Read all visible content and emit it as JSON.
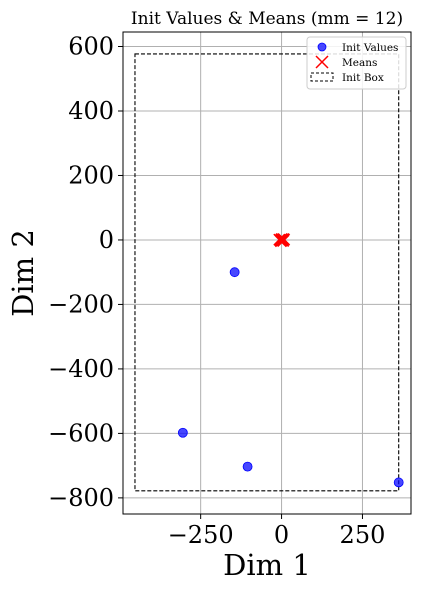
{
  "chart_data": {
    "type": "scatter",
    "title": "Init Values & Means (mm = 12)",
    "xlabel": "Dim 1",
    "ylabel": "Dim 2",
    "xlim": [
      -490,
      400
    ],
    "ylim": [
      -850,
      645
    ],
    "xticks": [
      -250,
      0,
      250
    ],
    "xtick_labels": [
      "−250",
      "0",
      "250"
    ],
    "yticks": [
      -800,
      -600,
      -400,
      -200,
      0,
      200,
      400,
      600
    ],
    "ytick_labels": [
      "−800",
      "−600",
      "−400",
      "−200",
      "0",
      "200",
      "400",
      "600"
    ],
    "grid": true,
    "legend_placement": "top-right",
    "colors": {
      "init_values": "#0000ff",
      "means": "#ff0000",
      "init_box": "#000000",
      "grid": "#b0b0b0"
    },
    "series": [
      {
        "name": "Init Values",
        "marker": "circle",
        "points": [
          {
            "x": -145,
            "y": -100
          },
          {
            "x": -305,
            "y": -598
          },
          {
            "x": -105,
            "y": -703
          },
          {
            "x": 362,
            "y": -752
          }
        ]
      },
      {
        "name": "Means",
        "marker": "x",
        "points": [
          {
            "x": -5,
            "y": 0
          },
          {
            "x": 0,
            "y": 3
          },
          {
            "x": 4,
            "y": -2
          },
          {
            "x": 8,
            "y": 1
          },
          {
            "x": -2,
            "y": -4
          },
          {
            "x": 2,
            "y": 2
          },
          {
            "x": -7,
            "y": 1
          },
          {
            "x": 5,
            "y": -3
          },
          {
            "x": 0,
            "y": 0
          },
          {
            "x": -3,
            "y": -2
          },
          {
            "x": 6,
            "y": 3
          },
          {
            "x": 1,
            "y": -1
          }
        ]
      },
      {
        "name": "Init Box",
        "style": "dashed-rectangle",
        "x_range": [
          -453,
          362
        ],
        "y_range": [
          -778,
          577
        ]
      }
    ]
  }
}
